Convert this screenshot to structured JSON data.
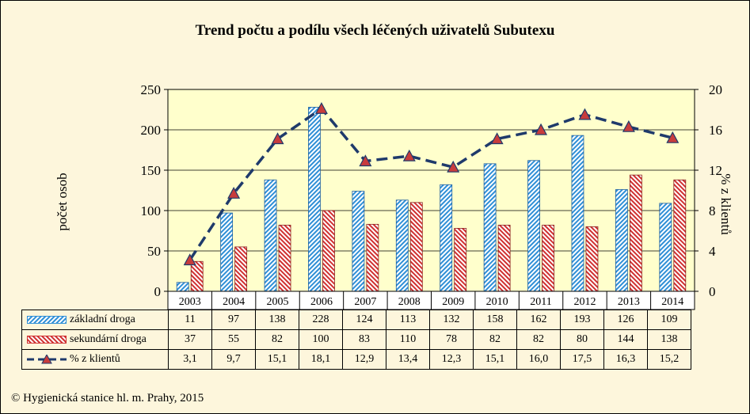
{
  "chart_data": {
    "type": "bar",
    "title": "Trend počtu a podílu všech léčených uživatelů Subutexu",
    "ylabel": "počet osob",
    "y2label": "% z klientů",
    "ylim": [
      0,
      250
    ],
    "y2lim": [
      0,
      20
    ],
    "yticks": [
      "0",
      "50",
      "100",
      "150",
      "200",
      "250"
    ],
    "y2ticks": [
      "0",
      "4",
      "8",
      "12",
      "16",
      "20"
    ],
    "grid": true,
    "categories": [
      "2003",
      "2004",
      "2005",
      "2006",
      "2007",
      "2008",
      "2009",
      "2010",
      "2011",
      "2012",
      "2013",
      "2014"
    ],
    "series": [
      {
        "name": "základní droga",
        "kind": "bar",
        "axis": "left",
        "color": "#2f8fd6",
        "values": [
          11,
          97,
          138,
          228,
          124,
          113,
          132,
          158,
          162,
          193,
          126,
          109
        ],
        "labels": [
          "11",
          "97",
          "138",
          "228",
          "124",
          "113",
          "132",
          "158",
          "162",
          "193",
          "126",
          "109"
        ]
      },
      {
        "name": "sekundární droga",
        "kind": "bar",
        "axis": "left",
        "color": "#d03030",
        "values": [
          37,
          55,
          82,
          100,
          83,
          110,
          78,
          82,
          82,
          80,
          144,
          138
        ],
        "labels": [
          "37",
          "55",
          "82",
          "100",
          "83",
          "110",
          "78",
          "82",
          "82",
          "80",
          "144",
          "138"
        ]
      },
      {
        "name": "% z klientů",
        "kind": "line",
        "axis": "right",
        "color": "#1f3a6b",
        "marker_color": "#c83c3c",
        "values": [
          3.1,
          9.7,
          15.1,
          18.1,
          12.9,
          13.4,
          12.3,
          15.1,
          16.0,
          17.5,
          16.3,
          15.2
        ],
        "labels": [
          "3,1",
          "9,7",
          "15,1",
          "18,1",
          "12,9",
          "13,4",
          "12,3",
          "15,1",
          "16,0",
          "17,5",
          "16,3",
          "15,2"
        ]
      }
    ]
  },
  "copyright": "© Hygienická stanice hl. m. Prahy, 2015"
}
